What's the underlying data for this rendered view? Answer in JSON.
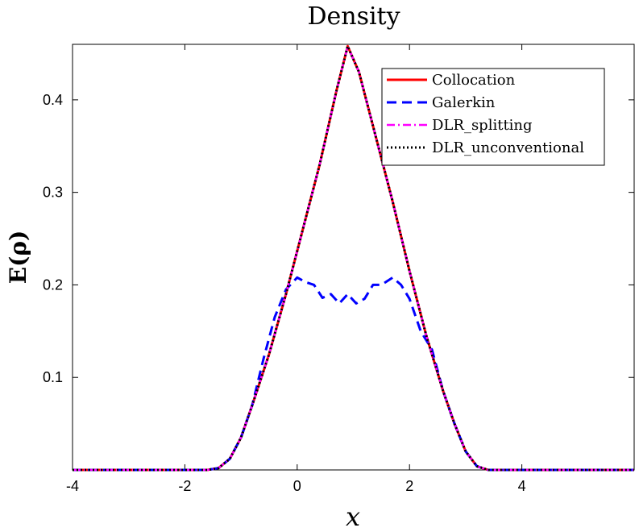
{
  "chart_data": {
    "type": "line",
    "title": "Density",
    "xlabel": "x",
    "ylabel": "E(ρ)",
    "xlim": [
      -4,
      6
    ],
    "ylim": [
      0,
      0.46
    ],
    "xticks": [
      -4,
      -2,
      0,
      2,
      4
    ],
    "yticks": [
      0.1,
      0.2,
      0.3,
      0.4
    ],
    "grid": false,
    "legend_position": "top-right",
    "series": [
      {
        "name": "Collocation",
        "color": "#ff0000",
        "style": "solid",
        "x": [
          -4,
          -1.6,
          -1.4,
          -1.2,
          -1.0,
          -0.8,
          -0.5,
          -0.2,
          0.1,
          0.4,
          0.7,
          0.9,
          1.1,
          1.4,
          1.7,
          2.0,
          2.3,
          2.6,
          2.8,
          3.0,
          3.2,
          3.4,
          6
        ],
        "y": [
          0,
          0,
          0.002,
          0.012,
          0.035,
          0.07,
          0.125,
          0.19,
          0.26,
          0.33,
          0.41,
          0.458,
          0.43,
          0.36,
          0.29,
          0.215,
          0.145,
          0.085,
          0.05,
          0.02,
          0.004,
          0,
          0
        ]
      },
      {
        "name": "Galerkin",
        "color": "#0000ff",
        "style": "dashed",
        "x": [
          -4,
          -1.6,
          -1.4,
          -1.2,
          -1.0,
          -0.8,
          -0.6,
          -0.4,
          -0.2,
          0.0,
          0.15,
          0.3,
          0.45,
          0.6,
          0.75,
          0.9,
          1.05,
          1.2,
          1.35,
          1.5,
          1.7,
          1.85,
          2.0,
          2.2,
          2.4,
          2.6,
          2.8,
          3.0,
          3.2,
          3.4,
          6
        ],
        "y": [
          0,
          0,
          0.002,
          0.012,
          0.035,
          0.07,
          0.12,
          0.165,
          0.195,
          0.208,
          0.203,
          0.2,
          0.186,
          0.19,
          0.18,
          0.19,
          0.18,
          0.185,
          0.2,
          0.2,
          0.208,
          0.2,
          0.185,
          0.15,
          0.13,
          0.085,
          0.05,
          0.02,
          0.004,
          0,
          0
        ]
      },
      {
        "name": "DLR_splitting",
        "color": "#ff00ff",
        "style": "dashdot",
        "x": [
          -4,
          -1.6,
          -1.4,
          -1.2,
          -1.0,
          -0.8,
          -0.5,
          -0.2,
          0.1,
          0.4,
          0.7,
          0.9,
          1.1,
          1.4,
          1.7,
          2.0,
          2.3,
          2.6,
          2.8,
          3.0,
          3.2,
          3.4,
          6
        ],
        "y": [
          0,
          0,
          0.002,
          0.012,
          0.035,
          0.07,
          0.125,
          0.19,
          0.26,
          0.33,
          0.41,
          0.458,
          0.43,
          0.36,
          0.29,
          0.215,
          0.145,
          0.085,
          0.05,
          0.02,
          0.004,
          0,
          0
        ]
      },
      {
        "name": "DLR_unconventional",
        "color": "#000000",
        "style": "dotted",
        "x": [
          -4,
          -1.6,
          -1.4,
          -1.2,
          -1.0,
          -0.8,
          -0.5,
          -0.2,
          0.1,
          0.4,
          0.7,
          0.9,
          1.1,
          1.4,
          1.7,
          2.0,
          2.3,
          2.6,
          2.8,
          3.0,
          3.2,
          3.4,
          6
        ],
        "y": [
          0,
          0,
          0.002,
          0.012,
          0.035,
          0.07,
          0.125,
          0.19,
          0.26,
          0.33,
          0.41,
          0.458,
          0.43,
          0.36,
          0.29,
          0.215,
          0.145,
          0.085,
          0.05,
          0.02,
          0.004,
          0,
          0
        ]
      }
    ]
  }
}
